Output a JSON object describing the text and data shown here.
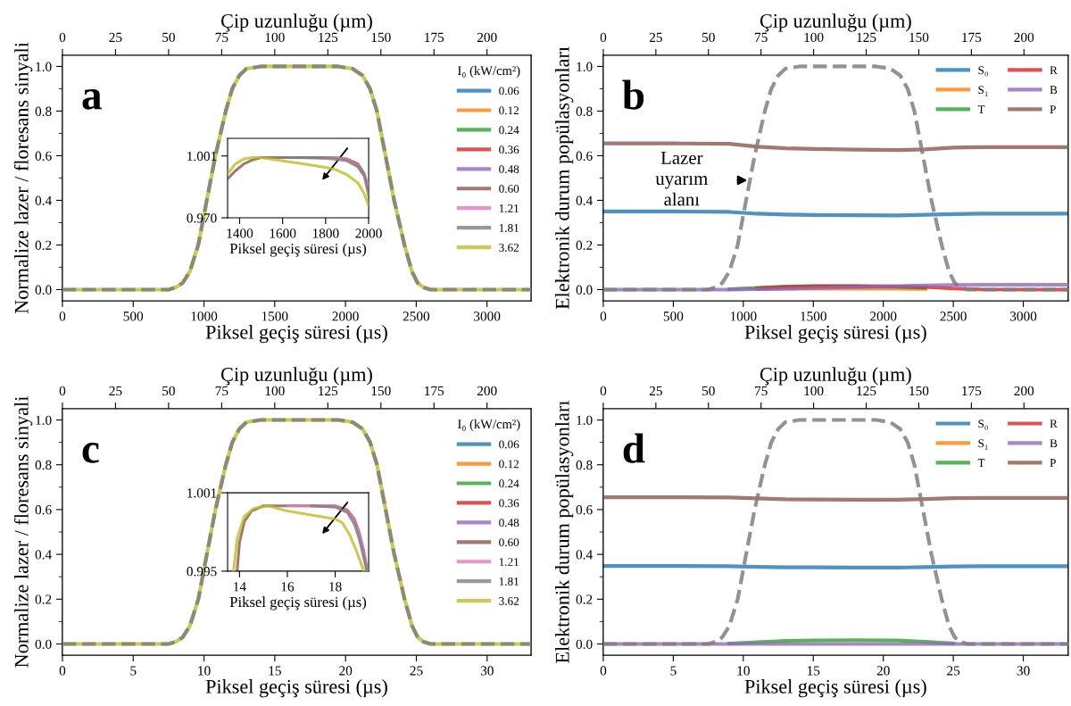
{
  "chart_data": [
    {
      "type": "line",
      "xlabel": "Piksel geçiş süresi (µs)",
      "ylabel": "Normalize lazer / floresans sinyali",
      "x2label": "Çip uzunluğu (µm)",
      "legend": "top right",
      "legend_title": "I₀ (kW/cm²)",
      "annotations": [
        "a"
      ],
      "xlim": [
        0,
        3311
      ],
      "xticks": [
        0,
        500,
        1000,
        1500,
        2000,
        2500,
        3000
      ],
      "ylim": [
        -0.05,
        1.05
      ],
      "yticks": [
        {
          "value": 0,
          "label": "0.0"
        },
        {
          "value": 0.1,
          "label": null
        },
        0.2,
        {
          "value": 0.3,
          "label": null
        },
        0.4,
        {
          "value": 0.5,
          "label": null
        },
        0.6,
        {
          "value": 0.7,
          "label": null
        },
        0.8,
        {
          "value": 0.9,
          "label": null
        },
        {
          "value": 1,
          "label": "1.0"
        }
      ],
      "x2lim": [
        0,
        220.7
      ],
      "x2ticks": [
        0,
        25,
        50,
        75,
        100,
        125,
        150,
        175,
        200
      ],
      "x": [
        0,
        750,
        800,
        850,
        900,
        960,
        1020,
        1081,
        1154,
        1200,
        1250,
        1300,
        1400,
        1950,
        2050,
        2120,
        2174,
        2222,
        2283,
        2344,
        2417,
        2470,
        2510,
        2550,
        2600,
        3311
      ],
      "series": [
        {
          "name": "0.06",
          "color": "#1f77b4",
          "values": [
            null,
            null,
            null,
            null,
            null,
            null,
            null,
            null,
            null,
            null,
            null,
            null,
            null,
            null,
            null,
            null,
            null,
            null,
            null,
            null,
            null,
            null,
            null,
            null,
            null,
            null
          ]
        },
        {
          "name": "0.12",
          "color": "#ff7f0e",
          "values": [
            null,
            null,
            null,
            null,
            null,
            null,
            null,
            null,
            null,
            null,
            null,
            null,
            null,
            null,
            null,
            null,
            null,
            null,
            null,
            null,
            null,
            null,
            null,
            null,
            null,
            null
          ]
        },
        {
          "name": "0.24",
          "color": "#2ca02c",
          "values": [
            null,
            null,
            null,
            null,
            null,
            null,
            null,
            null,
            null,
            null,
            null,
            null,
            null,
            null,
            null,
            null,
            null,
            null,
            null,
            null,
            null,
            null,
            null,
            null,
            null,
            null
          ]
        },
        {
          "name": "0.36",
          "color": "#d62728",
          "values": [
            null,
            null,
            null,
            null,
            null,
            null,
            null,
            null,
            null,
            null,
            null,
            null,
            null,
            null,
            null,
            null,
            null,
            null,
            null,
            null,
            null,
            null,
            null,
            null,
            null,
            null
          ]
        },
        {
          "name": "0.48",
          "color": "#9467bd",
          "values": [
            null,
            null,
            null,
            null,
            null,
            null,
            null,
            null,
            null,
            null,
            null,
            null,
            null,
            null,
            null,
            null,
            null,
            null,
            null,
            null,
            null,
            null,
            null,
            null,
            null,
            null
          ]
        },
        {
          "name": "0.60",
          "color": "#8c564b",
          "values": [
            null,
            null,
            null,
            null,
            null,
            null,
            null,
            null,
            null,
            null,
            null,
            null,
            null,
            null,
            null,
            null,
            null,
            null,
            null,
            null,
            null,
            null,
            null,
            null,
            null,
            null
          ]
        },
        {
          "name": "1.21",
          "color": "#e377c2",
          "values": [
            null,
            null,
            null,
            null,
            null,
            null,
            null,
            null,
            null,
            null,
            null,
            null,
            null,
            null,
            null,
            null,
            null,
            null,
            null,
            null,
            null,
            null,
            null,
            null,
            null,
            null
          ]
        },
        {
          "name": "1.81",
          "color": "#7f7f7f",
          "values": [
            null,
            null,
            null,
            null,
            null,
            null,
            null,
            null,
            null,
            null,
            null,
            null,
            null,
            null,
            null,
            null,
            null,
            null,
            null,
            null,
            null,
            null,
            null,
            null,
            null,
            null
          ]
        },
        {
          "name": "3.62",
          "color": "#bcbd22",
          "values": [
            0,
            0,
            0.01,
            0.03,
            0.08,
            0.2,
            0.4,
            0.6,
            0.8,
            0.9,
            0.96,
            0.99,
            1.0,
            1.0,
            0.99,
            0.96,
            0.9,
            0.8,
            0.6,
            0.4,
            0.2,
            0.08,
            0.03,
            0.01,
            0,
            0
          ]
        },
        {
          "color": "#7f7f7f",
          "line_style": "dashed",
          "values": [
            0,
            0,
            0.01,
            0.03,
            0.08,
            0.2,
            0.4,
            0.6,
            0.8,
            0.9,
            0.96,
            0.99,
            1.0,
            1.0,
            0.99,
            0.96,
            0.9,
            0.8,
            0.6,
            0.4,
            0.2,
            0.08,
            0.03,
            0.01,
            0,
            0
          ]
        }
      ]
    },
    {
      "type": "line",
      "xlabel": "Piksel geçiş süresi (µs)",
      "xlim": [
        1344,
        2000
      ],
      "xticks": [
        1400,
        1600,
        1800,
        2000
      ],
      "ylim": [
        0.97,
        1.0098
      ],
      "yticks": [
        {
          "value": 0.97,
          "label": "0.970"
        },
        1.001
      ],
      "x": [
        1344,
        1380,
        1420,
        1460,
        1500,
        1600,
        1700,
        1800,
        1850,
        1900,
        1950,
        1980,
        2000
      ],
      "series": [
        {
          "color": "#1f77b4",
          "values": [
            null,
            null,
            null,
            null,
            null,
            null,
            null,
            null,
            null,
            null,
            null,
            null,
            null
          ]
        },
        {
          "color": "#ff7f0e",
          "values": [
            null,
            null,
            null,
            null,
            null,
            null,
            null,
            null,
            null,
            null,
            null,
            null,
            null
          ]
        },
        {
          "color": "#2ca02c",
          "values": [
            null,
            null,
            null,
            null,
            null,
            null,
            null,
            null,
            null,
            null,
            null,
            null,
            null
          ]
        },
        {
          "color": "#d62728",
          "values": [
            null,
            null,
            null,
            null,
            null,
            null,
            null,
            null,
            null,
            null,
            null,
            null,
            null
          ]
        },
        {
          "color": "#9467bd",
          "values": [
            null,
            null,
            null,
            null,
            null,
            null,
            null,
            null,
            null,
            null,
            null,
            null,
            null
          ]
        },
        {
          "color": "#8c564b",
          "values": [
            0.9895,
            0.9935,
            0.997,
            0.999,
            1.0002,
            1.0002,
            1.0002,
            1.0002,
            1.0001,
            0.9995,
            0.997,
            0.992,
            0.9838
          ]
        },
        {
          "color": "#e377c2",
          "values": [
            null,
            null,
            null,
            null,
            null,
            null,
            null,
            1.0001,
            1.0,
            0.9992,
            0.996,
            0.991,
            0.986
          ]
        },
        {
          "color": "#7f7f7f",
          "values": [
            null,
            null,
            null,
            null,
            null,
            1.0002,
            1.0001,
            0.9998,
            0.9993,
            0.9985,
            0.9955,
            0.991,
            0.981
          ]
        },
        {
          "color": "#bcbd22",
          "values": [
            0.992,
            0.997,
            0.9995,
            1.0002,
            1.0002,
            0.9985,
            0.997,
            0.9953,
            0.994,
            0.9915,
            0.9875,
            0.982,
            0.976
          ]
        }
      ]
    },
    {
      "type": "line",
      "xlabel": "Piksel geçiş süresi (µs)",
      "ylabel": "Elektronik durum popülasyonları",
      "x2label": "Çip uzunluğu (µm)",
      "legend": "top right",
      "annotations": [
        "b",
        {
          "text": "Lazer\nuyarım\nalanı",
          "x": 1047,
          "y": 0.49
        }
      ],
      "xlim": [
        0,
        3320
      ],
      "xticks": [
        0,
        500,
        1000,
        1500,
        2000,
        2500,
        3000
      ],
      "ylim": [
        -0.05,
        1.05
      ],
      "yticks": [
        {
          "value": 0,
          "label": "0.0"
        },
        {
          "value": 0.1,
          "label": null
        },
        0.2,
        {
          "value": 0.3,
          "label": null
        },
        0.4,
        {
          "value": 0.5,
          "label": null
        },
        0.6,
        {
          "value": 0.7,
          "label": null
        },
        0.8,
        {
          "value": 0.9,
          "label": null
        },
        {
          "value": 1,
          "label": "1.0"
        }
      ],
      "x2lim": [
        0,
        221
      ],
      "x2ticks": [
        0,
        25,
        50,
        75,
        100,
        125,
        150,
        175,
        200
      ],
      "x": [
        0,
        500,
        900,
        1100,
        1300,
        1500,
        1800,
        2100,
        2300,
        2500,
        2700,
        3320
      ],
      "series": [
        {
          "name": "S₀",
          "color": "#1f77b4",
          "values": [
            0.35,
            0.35,
            0.348,
            0.34,
            0.336,
            0.334,
            0.333,
            0.332,
            0.335,
            0.338,
            0.34,
            0.34
          ]
        },
        {
          "name": "S₁",
          "color": "#ff7f0e",
          "values": [
            null,
            null,
            null,
            0.003,
            0.004,
            0.004,
            0.004,
            0.004,
            0.003,
            null,
            null,
            null
          ]
        },
        {
          "name": "T",
          "color": "#2ca02c",
          "values": [
            null,
            null,
            0.002,
            0.008,
            0.014,
            0.016,
            0.015,
            0.012,
            0.008,
            null,
            null,
            null
          ]
        },
        {
          "name": "R",
          "color": "#d62728",
          "values": [
            null,
            null,
            null,
            0.006,
            0.012,
            0.015,
            0.016,
            0.015,
            0.012,
            0.005,
            0.001,
            0
          ]
        },
        {
          "name": "B",
          "color": "#9467bd",
          "values": [
            0,
            0,
            0,
            0.002,
            0.004,
            0.007,
            0.011,
            0.015,
            0.019,
            0.021,
            0.022,
            0.022
          ]
        },
        {
          "name": "P",
          "color": "#8c564b",
          "values": [
            0.655,
            0.655,
            0.653,
            0.64,
            0.633,
            0.63,
            0.627,
            0.625,
            0.628,
            0.636,
            0.638,
            0.638
          ]
        },
        {
          "color": "#7f7f7f",
          "line_style": "dashed",
          "x": [
            0,
            750,
            800,
            850,
            900,
            960,
            1020,
            1081,
            1154,
            1200,
            1250,
            1300,
            1400,
            1950,
            2050,
            2120,
            2174,
            2222,
            2283,
            2344,
            2417,
            2470,
            2510,
            2550,
            2600,
            3320
          ],
          "values": [
            0,
            0,
            0.01,
            0.03,
            0.08,
            0.2,
            0.4,
            0.6,
            0.8,
            0.9,
            0.96,
            0.99,
            1.0,
            1.0,
            0.99,
            0.96,
            0.9,
            0.8,
            0.6,
            0.4,
            0.2,
            0.08,
            0.03,
            0.01,
            0,
            0
          ]
        }
      ]
    },
    {
      "type": "line",
      "xlabel": "Piksel geçiş süresi (µs)",
      "ylabel": "Normalize lazer / floresans sinyali",
      "x2label": "Çip uzunluğu (µm)",
      "legend": "top right",
      "legend_title": "I₀ (kW/cm²)",
      "annotations": [
        "c"
      ],
      "xlim": [
        0,
        33.1
      ],
      "xticks": [
        0,
        5,
        10,
        15,
        20,
        25,
        30
      ],
      "ylim": [
        -0.05,
        1.05
      ],
      "yticks": [
        {
          "value": 0,
          "label": "0.0"
        },
        {
          "value": 0.1,
          "label": null
        },
        0.2,
        {
          "value": 0.3,
          "label": null
        },
        0.4,
        {
          "value": 0.5,
          "label": null
        },
        0.6,
        {
          "value": 0.7,
          "label": null
        },
        0.8,
        {
          "value": 0.9,
          "label": null
        },
        {
          "value": 1,
          "label": "1.0"
        }
      ],
      "x2lim": [
        0,
        220.7
      ],
      "x2ticks": [
        0,
        25,
        50,
        75,
        100,
        125,
        150,
        175,
        200
      ],
      "x": [
        0,
        7.5,
        8,
        8.5,
        9,
        9.6,
        10.2,
        10.81,
        11.54,
        12,
        12.5,
        13,
        14,
        19.5,
        20.5,
        21.2,
        21.74,
        22.22,
        22.83,
        23.44,
        24.17,
        24.7,
        25.1,
        25.5,
        26,
        33.1
      ],
      "series": [
        {
          "name": "0.06",
          "color": "#1f77b4",
          "values": [
            null,
            null,
            null,
            null,
            null,
            null,
            null,
            null,
            null,
            null,
            null,
            null,
            null,
            null,
            null,
            null,
            null,
            null,
            null,
            null,
            null,
            null,
            null,
            null,
            null,
            null
          ]
        },
        {
          "name": "0.12",
          "color": "#ff7f0e",
          "values": [
            null,
            null,
            null,
            null,
            null,
            null,
            null,
            null,
            null,
            null,
            null,
            null,
            null,
            null,
            null,
            null,
            null,
            null,
            null,
            null,
            null,
            null,
            null,
            null,
            null,
            null
          ]
        },
        {
          "name": "0.24",
          "color": "#2ca02c",
          "values": [
            null,
            null,
            null,
            null,
            null,
            null,
            null,
            null,
            null,
            null,
            null,
            null,
            null,
            null,
            null,
            null,
            null,
            null,
            null,
            null,
            null,
            null,
            null,
            null,
            null,
            null
          ]
        },
        {
          "name": "0.36",
          "color": "#d62728",
          "values": [
            null,
            null,
            null,
            null,
            null,
            null,
            null,
            null,
            null,
            null,
            null,
            null,
            null,
            null,
            null,
            null,
            null,
            null,
            null,
            null,
            null,
            null,
            null,
            null,
            null,
            null
          ]
        },
        {
          "name": "0.48",
          "color": "#9467bd",
          "values": [
            null,
            null,
            null,
            null,
            null,
            null,
            null,
            null,
            null,
            null,
            null,
            null,
            null,
            null,
            null,
            null,
            null,
            null,
            null,
            null,
            null,
            null,
            null,
            null,
            null,
            null
          ]
        },
        {
          "name": "0.60",
          "color": "#8c564b",
          "values": [
            null,
            null,
            null,
            null,
            null,
            null,
            null,
            null,
            null,
            null,
            null,
            null,
            null,
            null,
            null,
            null,
            null,
            null,
            null,
            null,
            null,
            null,
            null,
            null,
            null,
            null
          ]
        },
        {
          "name": "1.21",
          "color": "#e377c2",
          "values": [
            null,
            null,
            null,
            null,
            null,
            null,
            null,
            null,
            null,
            null,
            null,
            null,
            null,
            null,
            null,
            null,
            null,
            null,
            null,
            null,
            null,
            null,
            null,
            null,
            null,
            null
          ]
        },
        {
          "name": "1.81",
          "color": "#7f7f7f",
          "values": [
            null,
            null,
            null,
            null,
            null,
            null,
            null,
            null,
            null,
            null,
            null,
            null,
            null,
            null,
            null,
            null,
            null,
            null,
            null,
            null,
            null,
            null,
            null,
            null,
            null,
            null
          ]
        },
        {
          "name": "3.62",
          "color": "#bcbd22",
          "values": [
            0,
            0,
            0.01,
            0.03,
            0.08,
            0.2,
            0.4,
            0.6,
            0.8,
            0.9,
            0.96,
            0.99,
            1.0,
            1.0,
            0.99,
            0.96,
            0.9,
            0.8,
            0.6,
            0.4,
            0.2,
            0.08,
            0.03,
            0.01,
            0,
            0
          ]
        },
        {
          "color": "#7f7f7f",
          "line_style": "dashed",
          "values": [
            0,
            0,
            0.01,
            0.03,
            0.08,
            0.2,
            0.4,
            0.6,
            0.8,
            0.9,
            0.96,
            0.99,
            1.0,
            1.0,
            0.99,
            0.96,
            0.9,
            0.8,
            0.6,
            0.4,
            0.2,
            0.08,
            0.03,
            0.01,
            0,
            0
          ]
        }
      ]
    },
    {
      "type": "line",
      "xlabel": "Piksel geçiş süresi (µs)",
      "xlim": [
        13.5,
        19.4
      ],
      "xticks": [
        14,
        16,
        18
      ],
      "ylim": [
        0.995,
        1.001
      ],
      "yticks": [
        0.995,
        1.001
      ],
      "series": [
        {
          "color": "#8c564b",
          "x": [
            13.9,
            14.0,
            14.2,
            14.5,
            15,
            16,
            17,
            18,
            18.5,
            18.8,
            19,
            19.2,
            19.35
          ],
          "values": [
            0.995,
            0.9972,
            0.9988,
            0.9996,
            1.0,
            1.0,
            1.0,
            1.0,
            0.9997,
            0.999,
            0.998,
            0.9965,
            0.995
          ]
        },
        {
          "color": "#e377c2",
          "x": [
            16,
            17,
            18,
            18.5,
            18.8,
            19,
            19.2,
            19.35
          ],
          "values": [
            1.0,
            1.0,
            1.0,
            0.9996,
            0.9989,
            0.9979,
            0.9964,
            0.995
          ]
        },
        {
          "color": "#7f7f7f",
          "x": [
            17,
            18,
            18.5,
            18.8,
            19,
            19.2,
            19.32
          ],
          "values": [
            1.0,
            0.9999,
            0.9995,
            0.9986,
            0.9975,
            0.996,
            0.995
          ]
        },
        {
          "color": "#bcbd22",
          "x": [
            13.75,
            13.9,
            14.2,
            14.6,
            15.2,
            16,
            17,
            18,
            18.3,
            18.6,
            18.9,
            19.2
          ],
          "values": [
            0.995,
            0.9975,
            0.9992,
            0.9998,
            1.0,
            0.9996,
            0.9993,
            0.999,
            0.9987,
            0.9978,
            0.9965,
            0.995
          ]
        }
      ]
    },
    {
      "type": "line",
      "xlabel": "Piksel geçiş süresi (µs)",
      "ylabel": "Elektronik durum popülasyonları",
      "x2label": "Çip uzunluğu (µm)",
      "legend": "top right",
      "annotations": [
        "d"
      ],
      "xlim": [
        0,
        33.2
      ],
      "xticks": [
        0,
        5,
        10,
        15,
        20,
        25,
        30
      ],
      "ylim": [
        -0.05,
        1.05
      ],
      "yticks": [
        {
          "value": 0,
          "label": "0.0"
        },
        {
          "value": 0.1,
          "label": null
        },
        0.2,
        {
          "value": 0.3,
          "label": null
        },
        0.4,
        {
          "value": 0.5,
          "label": null
        },
        0.6,
        {
          "value": 0.7,
          "label": null
        },
        0.8,
        {
          "value": 0.9,
          "label": null
        },
        {
          "value": 1,
          "label": "1.0"
        }
      ],
      "x2lim": [
        0,
        221
      ],
      "x2ticks": [
        0,
        25,
        50,
        75,
        100,
        125,
        150,
        175,
        200
      ],
      "x": [
        0,
        5,
        9,
        11,
        13,
        15,
        18,
        21,
        23,
        25,
        27,
        33.2
      ],
      "series": [
        {
          "name": "S₀",
          "color": "#1f77b4",
          "values": [
            0.348,
            0.348,
            0.347,
            0.344,
            0.342,
            0.342,
            0.341,
            0.341,
            0.343,
            0.346,
            0.347,
            0.347
          ]
        },
        {
          "name": "S₁",
          "color": "#ff7f0e",
          "values": [
            null,
            null,
            null,
            null,
            null,
            null,
            null,
            null,
            null,
            null,
            null,
            null
          ]
        },
        {
          "name": "T",
          "color": "#2ca02c",
          "values": [
            null,
            null,
            0.002,
            0.008,
            0.014,
            0.016,
            0.017,
            0.016,
            0.01,
            0.002,
            null,
            null
          ]
        },
        {
          "name": "R",
          "color": "#d62728",
          "values": [
            null,
            null,
            null,
            null,
            null,
            null,
            null,
            null,
            null,
            null,
            null,
            null
          ]
        },
        {
          "name": "B",
          "color": "#9467bd",
          "values": [
            0,
            0,
            0,
            0,
            0,
            0,
            0,
            0,
            0,
            0,
            0,
            0
          ]
        },
        {
          "name": "P",
          "color": "#8c564b",
          "values": [
            0.655,
            0.655,
            0.654,
            0.65,
            0.646,
            0.645,
            0.644,
            0.644,
            0.647,
            0.651,
            0.652,
            0.652
          ]
        },
        {
          "color": "#7f7f7f",
          "line_style": "dashed",
          "x": [
            0,
            7.5,
            8,
            8.5,
            9,
            9.6,
            10.2,
            10.81,
            11.54,
            12,
            12.5,
            13,
            14,
            19.5,
            20.5,
            21.2,
            21.74,
            22.22,
            22.83,
            23.44,
            24.17,
            24.7,
            25.1,
            25.5,
            26,
            33.2
          ],
          "values": [
            0,
            0,
            0.01,
            0.03,
            0.08,
            0.2,
            0.4,
            0.6,
            0.8,
            0.9,
            0.96,
            0.99,
            1.0,
            1.0,
            0.99,
            0.96,
            0.9,
            0.8,
            0.6,
            0.4,
            0.2,
            0.08,
            0.03,
            0.01,
            0,
            0
          ]
        }
      ]
    }
  ]
}
